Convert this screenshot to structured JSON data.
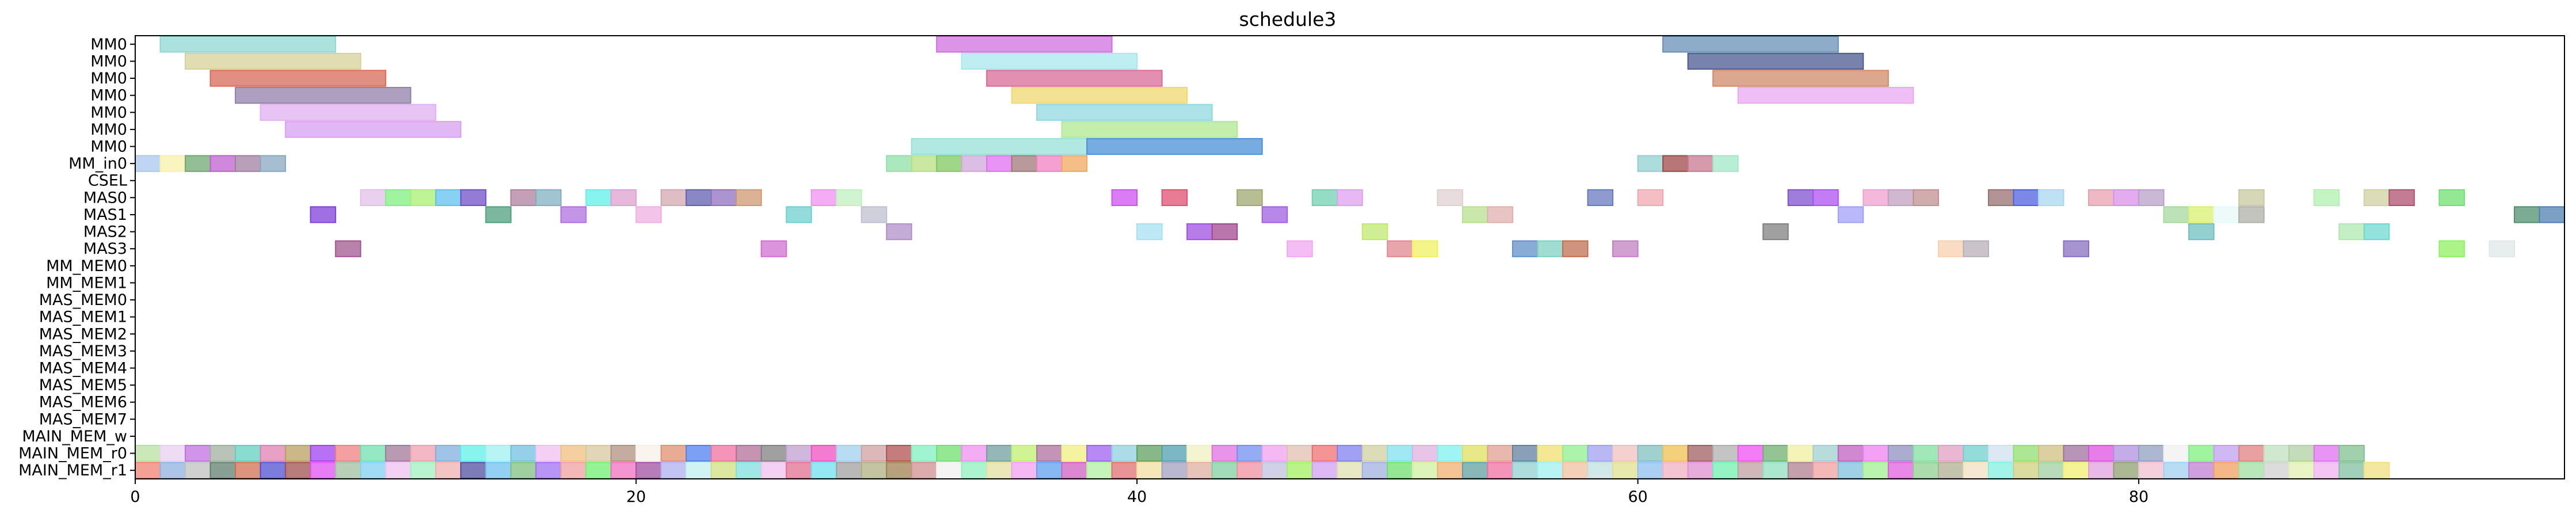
{
  "chart_data": {
    "type": "gantt",
    "title": "schedule3",
    "xlim": [
      0,
      97
    ],
    "x_ticks": [
      0,
      20,
      40,
      60,
      80
    ],
    "x_tick_labels": [
      "0",
      "20",
      "40",
      "60",
      "80"
    ],
    "rows": [
      "MM0",
      "MM0",
      "MM0",
      "MM0",
      "MM0",
      "MM0",
      "MM0",
      "MM_in0",
      "CSEL",
      "MAS0",
      "MAS1",
      "MAS2",
      "MAS3",
      "MM_MEM0",
      "MM_MEM1",
      "MAS_MEM0",
      "MAS_MEM1",
      "MAS_MEM2",
      "MAS_MEM3",
      "MAS_MEM4",
      "MAS_MEM5",
      "MAS_MEM6",
      "MAS_MEM7",
      "MAIN_MEM_w",
      "MAIN_MEM_r0",
      "MAIN_MEM_r1"
    ],
    "tasks": [
      {
        "row": 0,
        "start": 1,
        "end": 8,
        "color": "#8fd8d2"
      },
      {
        "row": 0,
        "start": 32,
        "end": 39,
        "color": "#d070e0"
      },
      {
        "row": 0,
        "start": 61,
        "end": 68,
        "color": "#6a8fb8"
      },
      {
        "row": 1,
        "start": 2,
        "end": 9,
        "color": "#d8d098"
      },
      {
        "row": 1,
        "start": 33,
        "end": 40,
        "color": "#a8e8ec"
      },
      {
        "row": 1,
        "start": 62,
        "end": 69,
        "color": "#4a5a90"
      },
      {
        "row": 2,
        "start": 3,
        "end": 10,
        "color": "#d86a5a"
      },
      {
        "row": 2,
        "start": 34,
        "end": 41,
        "color": "#d86a98"
      },
      {
        "row": 2,
        "start": 63,
        "end": 70,
        "color": "#d08a6a"
      },
      {
        "row": 3,
        "start": 4,
        "end": 11,
        "color": "#9080a8"
      },
      {
        "row": 3,
        "start": 35,
        "end": 42,
        "color": "#f0d870"
      },
      {
        "row": 3,
        "start": 64,
        "end": 71,
        "color": "#e8a8f0"
      },
      {
        "row": 4,
        "start": 5,
        "end": 12,
        "color": "#e0b0f0"
      },
      {
        "row": 4,
        "start": 36,
        "end": 43,
        "color": "#90d8e0"
      },
      {
        "row": 5,
        "start": 6,
        "end": 13,
        "color": "#d8a0f0"
      },
      {
        "row": 5,
        "start": 37,
        "end": 44,
        "color": "#b0e890"
      },
      {
        "row": 6,
        "start": 31,
        "end": 38,
        "color": "#98e0d8"
      },
      {
        "row": 6,
        "start": 38,
        "end": 45,
        "color": "#4a90d8"
      },
      {
        "row": 7,
        "start": 0,
        "end": 1,
        "color": "#a8c8f0"
      },
      {
        "row": 7,
        "start": 1,
        "end": 2,
        "color": "#f8f0a8"
      },
      {
        "row": 7,
        "start": 2,
        "end": 3,
        "color": "#70a870"
      },
      {
        "row": 7,
        "start": 3,
        "end": 4,
        "color": "#c060d0"
      },
      {
        "row": 7,
        "start": 4,
        "end": 5,
        "color": "#a080a0"
      },
      {
        "row": 7,
        "start": 5,
        "end": 6,
        "color": "#88a8c0"
      },
      {
        "row": 7,
        "start": 30,
        "end": 31,
        "color": "#90e0a8"
      },
      {
        "row": 7,
        "start": 31,
        "end": 32,
        "color": "#b8e080"
      },
      {
        "row": 7,
        "start": 32,
        "end": 33,
        "color": "#80c860"
      },
      {
        "row": 7,
        "start": 33,
        "end": 34,
        "color": "#d0a8d8"
      },
      {
        "row": 7,
        "start": 34,
        "end": 35,
        "color": "#e070f0"
      },
      {
        "row": 7,
        "start": 35,
        "end": 36,
        "color": "#a07878"
      },
      {
        "row": 7,
        "start": 36,
        "end": 37,
        "color": "#f080c0"
      },
      {
        "row": 7,
        "start": 37,
        "end": 38,
        "color": "#f0a860"
      },
      {
        "row": 7,
        "start": 60,
        "end": 61,
        "color": "#90d0d0"
      },
      {
        "row": 7,
        "start": 61,
        "end": 62,
        "color": "#a04848"
      },
      {
        "row": 7,
        "start": 62,
        "end": 63,
        "color": "#c87890"
      },
      {
        "row": 7,
        "start": 63,
        "end": 64,
        "color": "#a0e8c8"
      },
      {
        "row": 9,
        "start": 9,
        "end": 10,
        "color": "#e0c0e8"
      },
      {
        "row": 9,
        "start": 10,
        "end": 11,
        "color": "#80f080"
      },
      {
        "row": 9,
        "start": 11,
        "end": 12,
        "color": "#a8f070"
      },
      {
        "row": 9,
        "start": 12,
        "end": 13,
        "color": "#60c0f0"
      },
      {
        "row": 9,
        "start": 13,
        "end": 14,
        "color": "#7050c8"
      },
      {
        "row": 9,
        "start": 15,
        "end": 16,
        "color": "#b080a0"
      },
      {
        "row": 9,
        "start": 16,
        "end": 17,
        "color": "#80b0c0"
      },
      {
        "row": 9,
        "start": 18,
        "end": 19,
        "color": "#60f0e8"
      },
      {
        "row": 9,
        "start": 19,
        "end": 20,
        "color": "#e0a0d0"
      },
      {
        "row": 9,
        "start": 21,
        "end": 22,
        "color": "#d0a8b0"
      },
      {
        "row": 9,
        "start": 22,
        "end": 23,
        "color": "#6060b0"
      },
      {
        "row": 9,
        "start": 23,
        "end": 24,
        "color": "#9070c0"
      },
      {
        "row": 9,
        "start": 24,
        "end": 25,
        "color": "#d09870"
      },
      {
        "row": 9,
        "start": 27,
        "end": 28,
        "color": "#f090f0"
      },
      {
        "row": 9,
        "start": 28,
        "end": 29,
        "color": "#c0f0c0"
      },
      {
        "row": 9,
        "start": 39,
        "end": 40,
        "color": "#d050f0"
      },
      {
        "row": 9,
        "start": 41,
        "end": 42,
        "color": "#e05070"
      },
      {
        "row": 9,
        "start": 44,
        "end": 45,
        "color": "#a0a870"
      },
      {
        "row": 9,
        "start": 47,
        "end": 48,
        "color": "#70d0b0"
      },
      {
        "row": 9,
        "start": 48,
        "end": 49,
        "color": "#e0a0f0"
      },
      {
        "row": 9,
        "start": 52,
        "end": 53,
        "color": "#e0d0d0"
      },
      {
        "row": 9,
        "start": 58,
        "end": 59,
        "color": "#6878c0"
      },
      {
        "row": 9,
        "start": 60,
        "end": 61,
        "color": "#f0a8b0"
      },
      {
        "row": 9,
        "start": 66,
        "end": 67,
        "color": "#8050d0"
      },
      {
        "row": 9,
        "start": 67,
        "end": 68,
        "color": "#b050f0"
      },
      {
        "row": 9,
        "start": 69,
        "end": 70,
        "color": "#f0a0d0"
      },
      {
        "row": 9,
        "start": 70,
        "end": 71,
        "color": "#c0a0c0"
      },
      {
        "row": 9,
        "start": 71,
        "end": 72,
        "color": "#c09090"
      },
      {
        "row": 9,
        "start": 74,
        "end": 75,
        "color": "#987070"
      },
      {
        "row": 9,
        "start": 75,
        "end": 76,
        "color": "#5060e0"
      },
      {
        "row": 9,
        "start": 76,
        "end": 77,
        "color": "#a8d8f0"
      },
      {
        "row": 9,
        "start": 78,
        "end": 79,
        "color": "#e8a0b0"
      },
      {
        "row": 9,
        "start": 79,
        "end": 80,
        "color": "#d890e8"
      },
      {
        "row": 9,
        "start": 80,
        "end": 81,
        "color": "#b8a0c8"
      },
      {
        "row": 9,
        "start": 84,
        "end": 85,
        "color": "#c8c8a0"
      },
      {
        "row": 9,
        "start": 87,
        "end": 88,
        "color": "#b0f0b0"
      },
      {
        "row": 9,
        "start": 89,
        "end": 90,
        "color": "#d0d0a0"
      },
      {
        "row": 9,
        "start": 90,
        "end": 91,
        "color": "#b05070"
      },
      {
        "row": 9,
        "start": 92,
        "end": 93,
        "color": "#70e070"
      },
      {
        "row": 10,
        "start": 7,
        "end": 8,
        "color": "#8040d8"
      },
      {
        "row": 10,
        "start": 14,
        "end": 15,
        "color": "#50a080"
      },
      {
        "row": 10,
        "start": 17,
        "end": 18,
        "color": "#b070e0"
      },
      {
        "row": 10,
        "start": 20,
        "end": 21,
        "color": "#f0b0e0"
      },
      {
        "row": 10,
        "start": 26,
        "end": 27,
        "color": "#70d0d0"
      },
      {
        "row": 10,
        "start": 29,
        "end": 30,
        "color": "#c0c0d0"
      },
      {
        "row": 10,
        "start": 45,
        "end": 46,
        "color": "#a060e0"
      },
      {
        "row": 10,
        "start": 53,
        "end": 54,
        "color": "#b8e090"
      },
      {
        "row": 10,
        "start": 54,
        "end": 55,
        "color": "#e0b0b0"
      },
      {
        "row": 10,
        "start": 68,
        "end": 69,
        "color": "#a0a0f8"
      },
      {
        "row": 10,
        "start": 81,
        "end": 82,
        "color": "#a8d8a0"
      },
      {
        "row": 10,
        "start": 82,
        "end": 83,
        "color": "#d8f070"
      },
      {
        "row": 10,
        "start": 83,
        "end": 84,
        "color": "#e8f8f8"
      },
      {
        "row": 10,
        "start": 84,
        "end": 85,
        "color": "#b0b0a8"
      },
      {
        "row": 10,
        "start": 95,
        "end": 96,
        "color": "#509070"
      },
      {
        "row": 10,
        "start": 96,
        "end": 97,
        "color": "#5080b0"
      },
      {
        "row": 11,
        "start": 30,
        "end": 31,
        "color": "#b090c8"
      },
      {
        "row": 11,
        "start": 40,
        "end": 41,
        "color": "#a8e0f0"
      },
      {
        "row": 11,
        "start": 42,
        "end": 43,
        "color": "#a050e0"
      },
      {
        "row": 11,
        "start": 43,
        "end": 44,
        "color": "#a04890"
      },
      {
        "row": 11,
        "start": 49,
        "end": 50,
        "color": "#c0e870"
      },
      {
        "row": 11,
        "start": 65,
        "end": 66,
        "color": "#808080"
      },
      {
        "row": 11,
        "start": 82,
        "end": 83,
        "color": "#70c0c0"
      },
      {
        "row": 11,
        "start": 88,
        "end": 89,
        "color": "#b0e8b0"
      },
      {
        "row": 11,
        "start": 89,
        "end": 90,
        "color": "#70d8d0"
      },
      {
        "row": 12,
        "start": 8,
        "end": 9,
        "color": "#a05890"
      },
      {
        "row": 12,
        "start": 25,
        "end": 26,
        "color": "#d070d0"
      },
      {
        "row": 12,
        "start": 46,
        "end": 47,
        "color": "#f0a8f0"
      },
      {
        "row": 12,
        "start": 50,
        "end": 51,
        "color": "#e08890"
      },
      {
        "row": 12,
        "start": 51,
        "end": 52,
        "color": "#f0f060"
      },
      {
        "row": 12,
        "start": 55,
        "end": 56,
        "color": "#6090c8"
      },
      {
        "row": 12,
        "start": 56,
        "end": 57,
        "color": "#80d0c0"
      },
      {
        "row": 12,
        "start": 57,
        "end": 58,
        "color": "#c07050"
      },
      {
        "row": 12,
        "start": 59,
        "end": 60,
        "color": "#c080c0"
      },
      {
        "row": 12,
        "start": 72,
        "end": 73,
        "color": "#f8d0b0"
      },
      {
        "row": 12,
        "start": 73,
        "end": 74,
        "color": "#b8b0b8"
      },
      {
        "row": 12,
        "start": 77,
        "end": 78,
        "color": "#8870c0"
      },
      {
        "row": 12,
        "start": 92,
        "end": 93,
        "color": "#90f060"
      },
      {
        "row": 12,
        "start": 94,
        "end": 95,
        "color": "#e0e8e8"
      }
    ],
    "main_mem_r0_colors": [
      "#b8e0a0",
      "#e8d0f0",
      "#c070e0",
      "#a0b0a0",
      "#60d0c0",
      "#e080b0",
      "#b8a060",
      "#a040f0",
      "#f08080",
      "#70e0b0",
      "#a07898",
      "#f0a0b0",
      "#80b0e0",
      "#60f0e8",
      "#a0f0f0",
      "#70c0e0",
      "#f0c0f0",
      "#f0c080",
      "#d8c8a0",
      "#b09080",
      "#f8f0e8",
      "#e09070",
      "#5080f0",
      "#f070a0",
      "#b07098",
      "#808080",
      "#c0a0d0",
      "#f050c0",
      "#a0d0f0",
      "#d0a0a0",
      "#b05050",
      "#80f0c0",
      "#70e070",
      "#f090f0",
      "#70a0a0",
      "#c0f070",
      "#b070a0",
      "#f0f080",
      "#a060f0",
      "#90d0e0",
      "#60a060",
      "#50a0b0",
      "#f0f0c0",
      "#e070e0",
      "#7090f0",
      "#f0a0f0",
      "#e0c0b0",
      "#f07070",
      "#8080f0",
      "#d0d0a0",
      "#80e0f0",
      "#e0b0e0",
      "#80f0f0",
      "#e0e060",
      "#e0a090",
      "#6080a0",
      "#f0e070",
      "#90f090",
      "#a0a0f0",
      "#f0c0c0",
      "#80c0c0",
      "#f0c050",
      "#a06060",
      "#b0b0b0",
      "#f050f0",
      "#70b070",
      "#f0f0a0",
      "#a0d0d0",
      "#c060c0",
      "#f080f0",
      "#9090c0",
      "#80e0a0",
      "#e0a0c0",
      "#70d0d0",
      "#d0e0f0",
      "#90e070",
      "#d0c080",
      "#a070a0",
      "#e050e0",
      "#b090e0",
      "#90a0c0",
      "#f0f0f0",
      "#80f080",
      "#c0a0f0",
      "#e08080",
      "#c0e0c0",
      "#b0d0a0",
      "#e070f0",
      "#80c090"
    ],
    "main_mem_r1_colors": [
      "#f08070",
      "#90b0e0",
      "#c0c0c0",
      "#608070",
      "#d07050",
      "#5050d0",
      "#a05050",
      "#e050f0",
      "#a0c0a0",
      "#80d0f0",
      "#f0c0f0",
      "#a0f0c0",
      "#f0b0b0",
      "#5050a0",
      "#70c0f0",
      "#80c080",
      "#a070f0",
      "#f0a0a0",
      "#70f070",
      "#f070c0",
      "#a050a0",
      "#b0b0f0",
      "#c0f0f0",
      "#d0e080",
      "#80e0e0",
      "#f0c0f0",
      "#e07090",
      "#70e0f0",
      "#a0a0a0",
      "#b0b080",
      "#a08050",
      "#d09090",
      "#f0f0f0",
      "#90f0c0",
      "#e0e0a0",
      "#f0a0f0",
      "#60a0f0",
      "#d060c0",
      "#b0f0a0",
      "#e07070",
      "#f0e0a0",
      "#a0a0c0",
      "#e0b0a0",
      "#80d0a0",
      "#f090a0",
      "#c0c0e0",
      "#a0f060",
      "#d0a0f0",
      "#e0e0b0",
      "#a0b0e0",
      "#70e070",
      "#d0f0a0",
      "#f0b070",
      "#60a0a0",
      "#f070a0",
      "#90d0d0",
      "#a0f0f0",
      "#f0c0a0",
      "#c0e0e0",
      "#e0e090",
      "#90c0f0",
      "#f0b0c0",
      "#e090d0",
      "#70f0b0",
      "#c0a0a0",
      "#90e0c0",
      "#b08090",
      "#f0a0a0",
      "#80c0e0",
      "#a0f090",
      "#e060e0",
      "#90d090",
      "#b0b090",
      "#f0e0c0",
      "#80f0e0",
      "#d0d080",
      "#a0d0a0",
      "#f0f070",
      "#e0a0e0",
      "#90a070",
      "#f0c0d0",
      "#a0d0f0",
      "#c080d0",
      "#f0a060",
      "#a0e0a0",
      "#d0d0d0",
      "#e0f0b0",
      "#f0b0f0",
      "#80c0a0",
      "#f0e080"
    ]
  }
}
